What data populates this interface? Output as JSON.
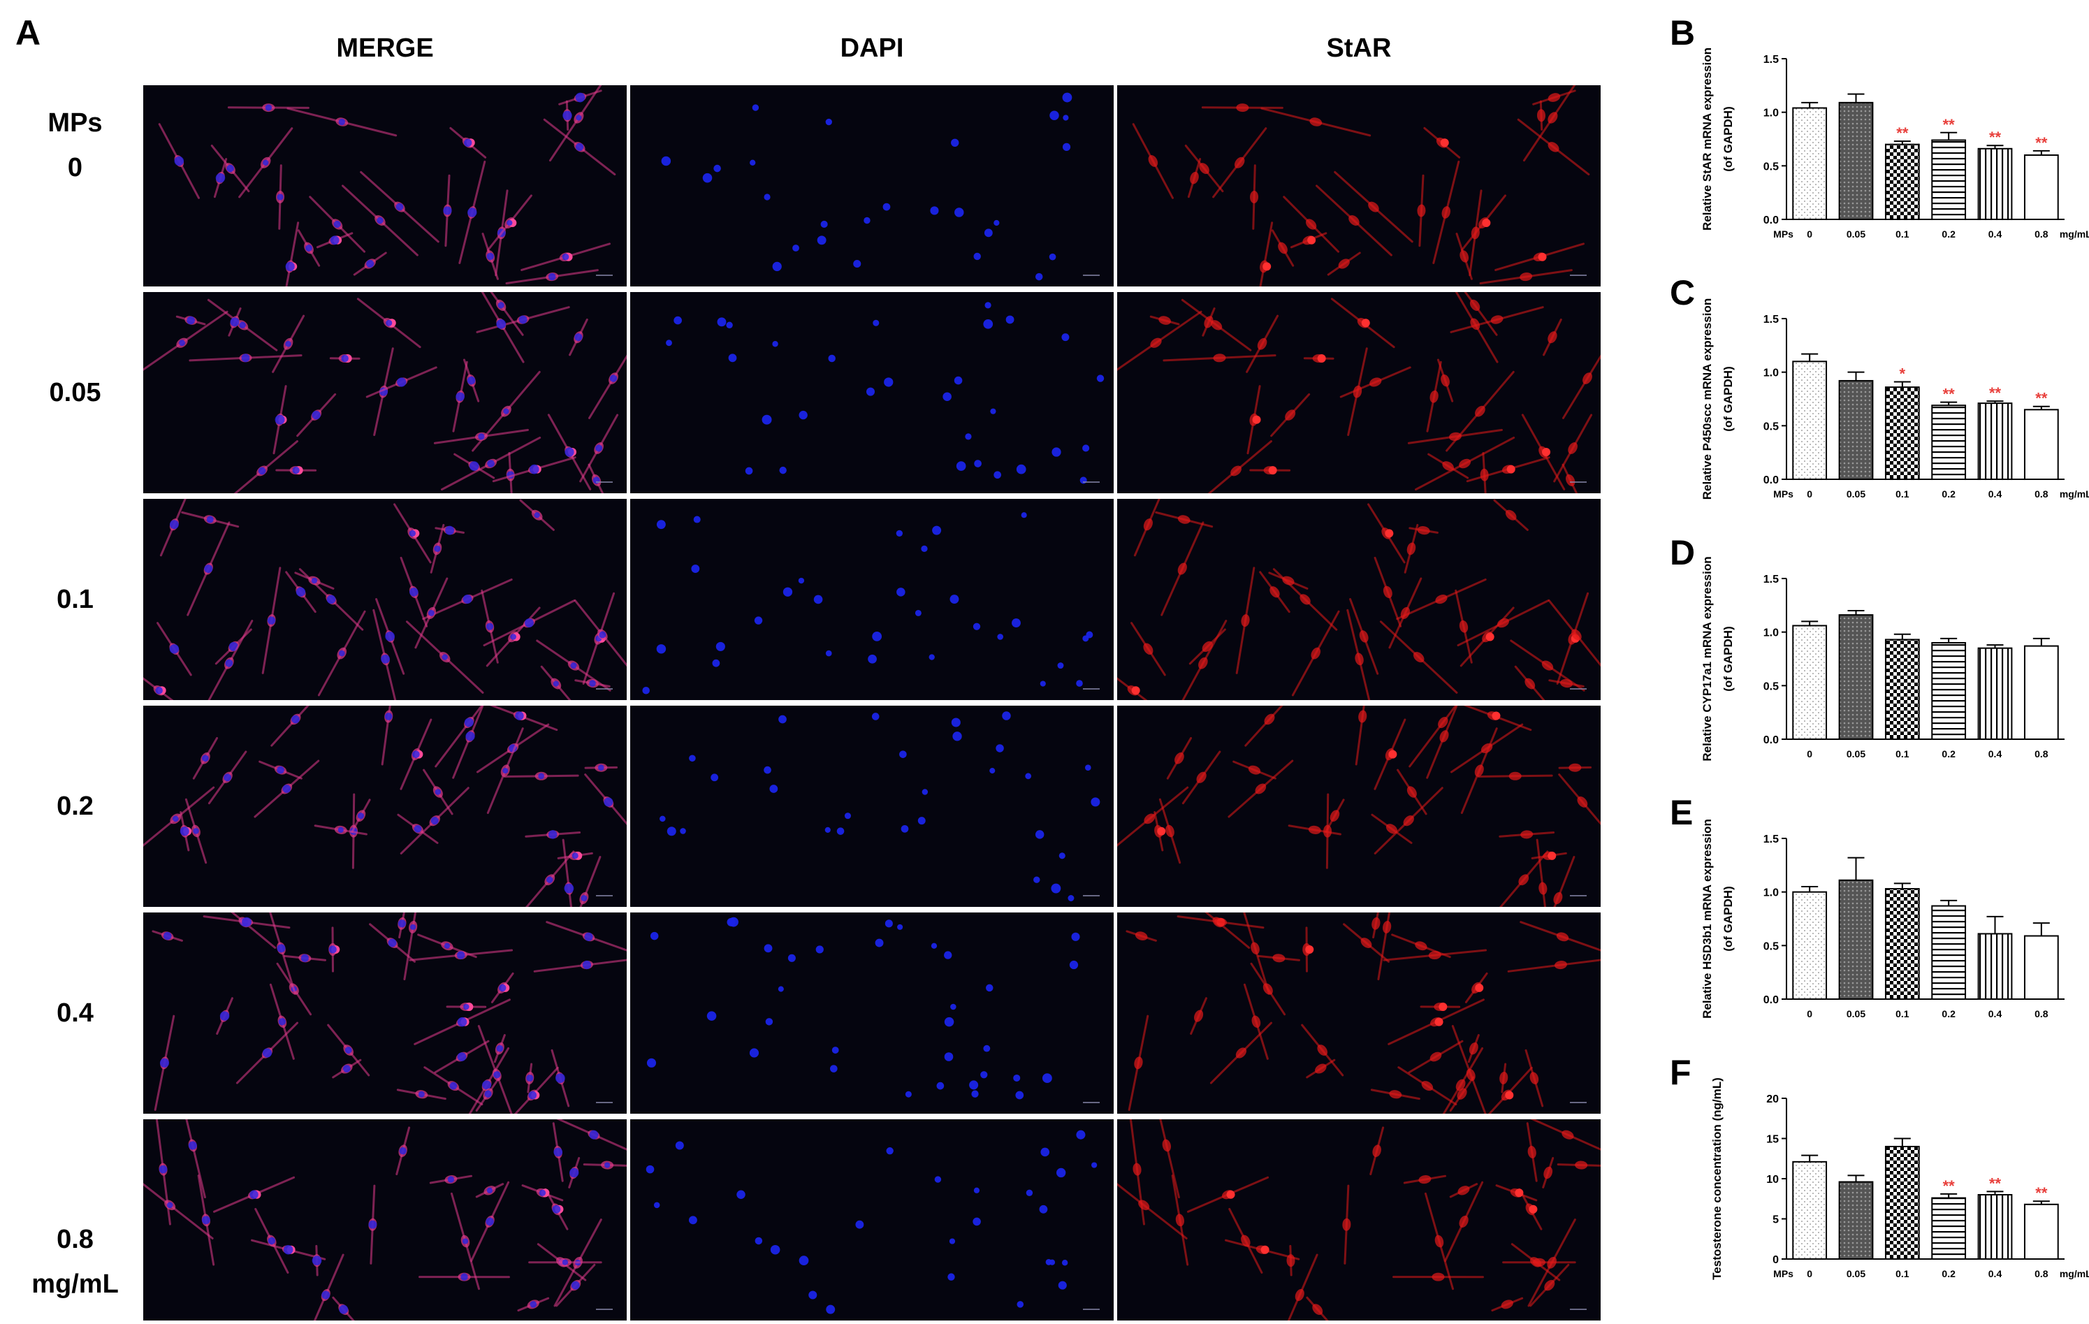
{
  "panel_a": {
    "letter": "A",
    "columns": [
      "MERGE",
      "DAPI",
      "StAR"
    ],
    "rows": [
      {
        "lines": [
          "MPs",
          "0"
        ]
      },
      {
        "lines": [
          "0.05"
        ]
      },
      {
        "lines": [
          "0.1"
        ]
      },
      {
        "lines": [
          "0.2"
        ]
      },
      {
        "lines": [
          "0.4"
        ]
      },
      {
        "lines": [
          "0.8",
          "mg/mL"
        ]
      }
    ],
    "colors": {
      "merge": "#e23a8c",
      "dapi": "#1a24e8",
      "star": "#e21a1a",
      "background": "#05050f"
    }
  },
  "chart_data": [
    {
      "panel": "B",
      "type": "bar",
      "ylabel": [
        "Relative StAR mRNA expression",
        "(of GAPDH)"
      ],
      "ylim": [
        0,
        1.5
      ],
      "yticks": [
        "0.0",
        "0.5",
        "1.0",
        "1.5"
      ],
      "xprefix": "MPs",
      "xsuffix": "mg/mL",
      "categories": [
        "0",
        "0.05",
        "0.1",
        "0.2",
        "0.4",
        "0.8"
      ],
      "values": [
        1.04,
        1.09,
        0.7,
        0.74,
        0.66,
        0.6
      ],
      "errors": [
        0.05,
        0.08,
        0.03,
        0.07,
        0.03,
        0.04
      ],
      "significance": [
        "",
        "",
        "**",
        "**",
        "**",
        "**"
      ]
    },
    {
      "panel": "C",
      "type": "bar",
      "ylabel": [
        "Relative P450scc mRNA expression",
        "(of GAPDH)"
      ],
      "ylim": [
        0,
        1.5
      ],
      "yticks": [
        "0.0",
        "0.5",
        "1.0",
        "1.5"
      ],
      "xprefix": "MPs",
      "xsuffix": "mg/mL",
      "categories": [
        "0",
        "0.05",
        "0.1",
        "0.2",
        "0.4",
        "0.8"
      ],
      "values": [
        1.1,
        0.92,
        0.86,
        0.69,
        0.71,
        0.65
      ],
      "errors": [
        0.07,
        0.08,
        0.05,
        0.03,
        0.02,
        0.03
      ],
      "significance": [
        "",
        "",
        "*",
        "**",
        "**",
        "**"
      ]
    },
    {
      "panel": "D",
      "type": "bar",
      "ylabel": [
        "Relative CYP17a1 mRNA expression",
        "(of GAPDH)"
      ],
      "ylim": [
        0,
        1.5
      ],
      "yticks": [
        "0.0",
        "0.5",
        "1.0",
        "1.5"
      ],
      "xprefix": "",
      "xsuffix": "",
      "categories": [
        "0",
        "0.05",
        "0.1",
        "0.2",
        "0.4",
        "0.8"
      ],
      "values": [
        1.06,
        1.16,
        0.93,
        0.9,
        0.85,
        0.87
      ],
      "errors": [
        0.04,
        0.04,
        0.05,
        0.04,
        0.03,
        0.07
      ],
      "significance": [
        "",
        "",
        "",
        "",
        "",
        ""
      ]
    },
    {
      "panel": "E",
      "type": "bar",
      "ylabel": [
        "Relative HSD3b1 mRNA expression",
        "(of GAPDH)"
      ],
      "ylim": [
        0,
        1.5
      ],
      "yticks": [
        "0.0",
        "0.5",
        "1.0",
        "1.5"
      ],
      "xprefix": "",
      "xsuffix": "",
      "categories": [
        "0",
        "0.05",
        "0.1",
        "0.2",
        "0.4",
        "0.8"
      ],
      "values": [
        1.0,
        1.11,
        1.03,
        0.87,
        0.61,
        0.59
      ],
      "errors": [
        0.05,
        0.21,
        0.05,
        0.05,
        0.16,
        0.12
      ],
      "significance": [
        "",
        "",
        "",
        "",
        "",
        ""
      ]
    },
    {
      "panel": "F",
      "type": "bar",
      "ylabel": [
        "Testosterone concentration (ng/mL)"
      ],
      "ylim": [
        0,
        20
      ],
      "yticks": [
        "0",
        "5",
        "10",
        "15",
        "20"
      ],
      "xprefix": "MPs",
      "xsuffix": "mg/mL",
      "categories": [
        "0",
        "0.05",
        "0.1",
        "0.2",
        "0.4",
        "0.8"
      ],
      "values": [
        12.1,
        9.6,
        14.0,
        7.6,
        8.0,
        6.8
      ],
      "errors": [
        0.8,
        0.8,
        1.0,
        0.5,
        0.4,
        0.4
      ],
      "significance": [
        "",
        "",
        "",
        "**",
        "**",
        "**"
      ]
    }
  ]
}
